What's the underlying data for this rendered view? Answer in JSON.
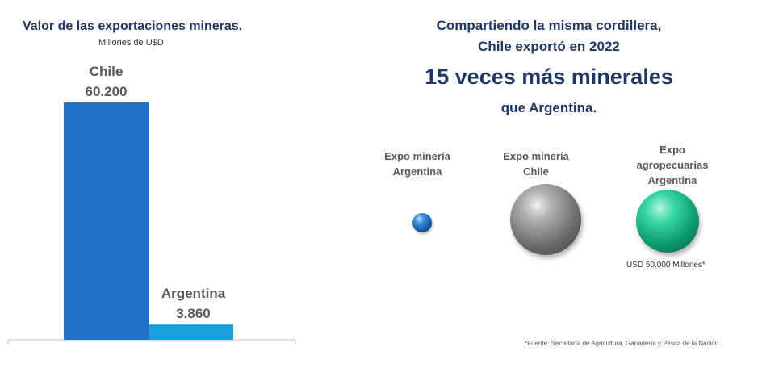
{
  "left_panel": {
    "title": "Valor de las exportaciones mineras.",
    "subtitle": "Millones de U$D"
  },
  "chart_data": {
    "type": "bar",
    "title": "Valor de las exportaciones mineras.",
    "subtitle": "Millones de U$D",
    "categories": [
      "Chile",
      "Argentina"
    ],
    "values": [
      60200,
      3860
    ],
    "value_labels": [
      "60.200",
      "3.860"
    ],
    "colors": [
      "#1e6fc7",
      "#1aa0dc"
    ],
    "ylim": [
      0,
      60200
    ],
    "grid": false,
    "legend": "none"
  },
  "right_panel": {
    "headline_line1": "Compartiendo la misma cordillera,",
    "headline_line2": "Chile exportó en 2022",
    "headline_line3": "15 veces más minerales",
    "headline_line4": "que Argentina.",
    "bubbles": [
      {
        "label": "Expo minería\nArgentina",
        "color": "#0e4f9c"
      },
      {
        "label": "Expo minería\nChile",
        "color": "#6e6e6e"
      },
      {
        "label": "Expo\nagropecuarias\nArgentina",
        "color": "#0f9b72",
        "note": "USD 50.000 Millones*"
      }
    ],
    "footnote": "*Fuente: Secretaría de Agricultura, Ganadería y Pesca de la Nación"
  }
}
